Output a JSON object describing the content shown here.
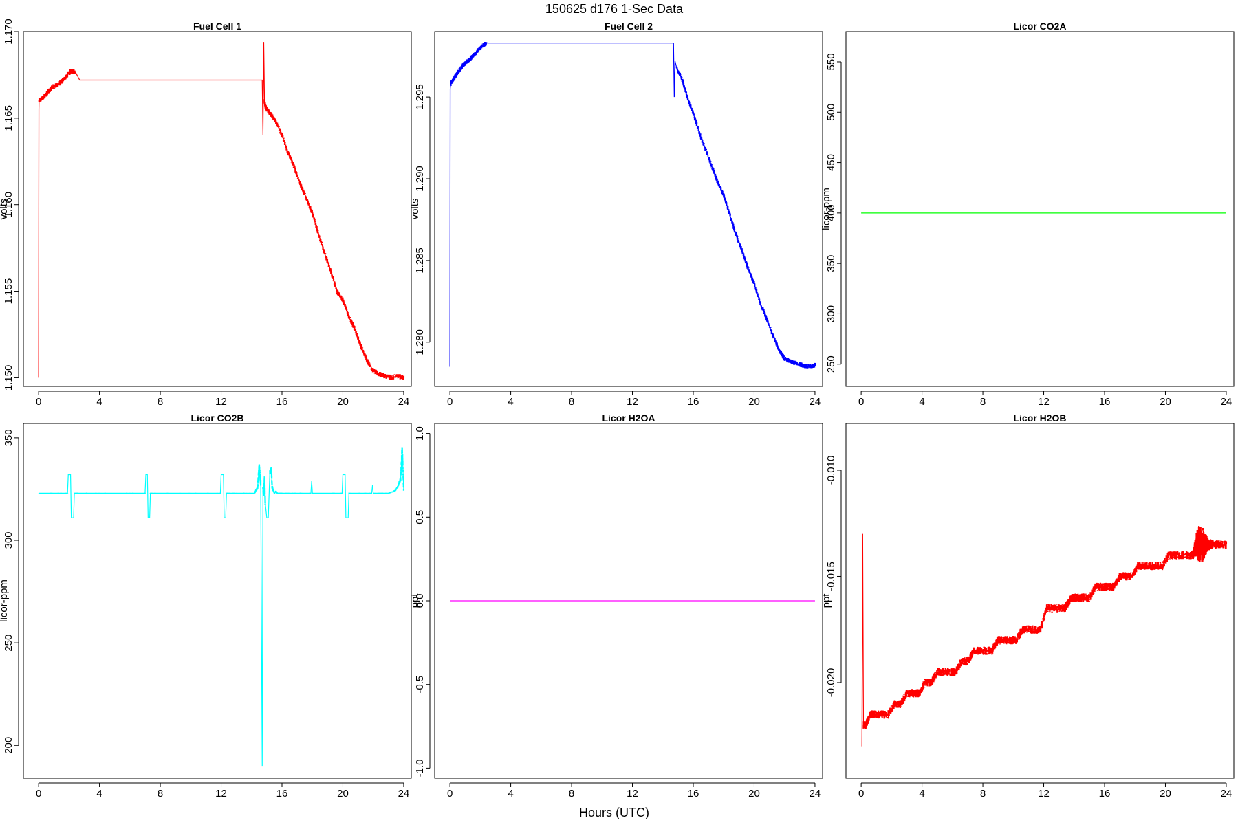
{
  "figure": {
    "title": "150625   d176   1-Sec Data",
    "xlabel": "Hours (UTC)"
  },
  "chart_data": [
    {
      "type": "line",
      "title": "Fuel Cell 1",
      "xlabel": "",
      "ylabel": "volts",
      "xlim": [
        -1,
        24.5
      ],
      "ylim": [
        1.1495,
        1.17
      ],
      "xticks": [
        "0",
        "4",
        "8",
        "12",
        "16",
        "20",
        "24"
      ],
      "yticks": [
        "1.150",
        "1.155",
        "1.160",
        "1.165",
        "1.170"
      ],
      "ytick_values": [
        1.15,
        1.155,
        1.16,
        1.165,
        1.17
      ],
      "grid": false,
      "series": [
        {
          "color": "#ff0000",
          "x": [
            0,
            0.02,
            0.03,
            0.3,
            0.6,
            0.9,
            1.2,
            1.5,
            1.8,
            2.1,
            2.4,
            2.7,
            14.7,
            14.75,
            14.8,
            14.85,
            14.9,
            15.0,
            15.3,
            15.6,
            16.0,
            16.4,
            16.8,
            17.2,
            17.6,
            18.0,
            18.4,
            18.8,
            19.2,
            19.6,
            20.0,
            20.4,
            20.8,
            21.2,
            21.6,
            22.0,
            22.4,
            22.8,
            23.2,
            23.6,
            24.0
          ],
          "y": [
            1.15,
            1.1655,
            1.166,
            1.1662,
            1.1665,
            1.1668,
            1.1669,
            1.1671,
            1.1674,
            1.1677,
            1.1677,
            1.1672,
            1.1672,
            1.164,
            1.1694,
            1.166,
            1.1657,
            1.1655,
            1.1652,
            1.1648,
            1.164,
            1.163,
            1.1622,
            1.1612,
            1.1604,
            1.1595,
            1.1583,
            1.1572,
            1.1562,
            1.155,
            1.1545,
            1.1535,
            1.1528,
            1.1518,
            1.151,
            1.1504,
            1.1502,
            1.1501,
            1.15,
            1.1501,
            1.15
          ],
          "noise": [
            0,
            0,
            0.0003,
            0.0003,
            0.0003,
            0.0003,
            0.0003,
            0.0003,
            0.0003,
            0.0003,
            0.0003,
            0,
            0,
            0,
            0,
            0.0003,
            0.0003,
            0.0003,
            0.0003,
            0.0003,
            0.0003,
            0.0003,
            0.0003,
            0.0003,
            0.0003,
            0.0003,
            0.0003,
            0.0003,
            0.0003,
            0.0003,
            0.0003,
            0.0003,
            0.0003,
            0.0003,
            0.0003,
            0.0003,
            0.0003,
            0.0003,
            0.0003,
            0.0003,
            0.0003
          ]
        }
      ]
    },
    {
      "type": "line",
      "title": "Fuel Cell 2",
      "xlabel": "",
      "ylabel": "volts",
      "xlim": [
        -1,
        24.5
      ],
      "ylim": [
        1.2773,
        1.299
      ],
      "xticks": [
        "0",
        "4",
        "8",
        "12",
        "16",
        "20",
        "24"
      ],
      "yticks": [
        "1.280",
        "1.285",
        "1.290",
        "1.295"
      ],
      "ytick_values": [
        1.28,
        1.285,
        1.29,
        1.295
      ],
      "grid": false,
      "series": [
        {
          "color": "#0000ff",
          "x": [
            0,
            0.02,
            0.05,
            0.3,
            0.6,
            0.9,
            1.2,
            1.5,
            1.8,
            2.1,
            2.4,
            2.7,
            14.7,
            14.75,
            14.8,
            14.9,
            15.3,
            15.6,
            16.0,
            16.4,
            16.8,
            17.2,
            17.6,
            18.0,
            18.4,
            18.8,
            19.2,
            19.6,
            20.0,
            20.4,
            20.8,
            21.2,
            21.6,
            22.0,
            22.4,
            22.8,
            23.2,
            23.6,
            24.0
          ],
          "y": [
            1.2785,
            1.2955,
            1.2958,
            1.2962,
            1.2966,
            1.297,
            1.2972,
            1.2975,
            1.2978,
            1.2981,
            1.2983,
            1.2983,
            1.2983,
            1.295,
            1.2972,
            1.2968,
            1.296,
            1.295,
            1.294,
            1.2928,
            1.2918,
            1.2908,
            1.2898,
            1.289,
            1.2878,
            1.2866,
            1.2856,
            1.2845,
            1.2836,
            1.2824,
            1.2815,
            1.2805,
            1.2796,
            1.279,
            1.2788,
            1.2787,
            1.2786,
            1.2785,
            1.2786
          ],
          "noise": [
            0,
            0,
            0.0003,
            0.0003,
            0.0003,
            0.0003,
            0.0003,
            0.0003,
            0.0003,
            0.0003,
            0.0003,
            0,
            0,
            0,
            0,
            0.0003,
            0.0003,
            0.0003,
            0.0003,
            0.0003,
            0.0003,
            0.0003,
            0.0003,
            0.0003,
            0.0003,
            0.0003,
            0.0003,
            0.0003,
            0.0003,
            0.0003,
            0.0003,
            0.0003,
            0.0003,
            0.0003,
            0.0003,
            0.0003,
            0.0003,
            0.0003,
            0.0003
          ]
        }
      ]
    },
    {
      "type": "line",
      "title": "Licor CO2A",
      "xlabel": "",
      "ylabel": "licor-ppm",
      "xlim": [
        -1,
        24.5
      ],
      "ylim": [
        228,
        580
      ],
      "xticks": [
        "0",
        "4",
        "8",
        "12",
        "16",
        "20",
        "24"
      ],
      "yticks": [
        "250",
        "300",
        "350",
        "400",
        "450",
        "500",
        "550"
      ],
      "ytick_values": [
        250,
        300,
        350,
        400,
        450,
        500,
        550
      ],
      "grid": false,
      "series": [
        {
          "color": "#00ff00",
          "x": [
            0,
            24
          ],
          "y": [
            400,
            400
          ],
          "noise": [
            0,
            0
          ]
        }
      ]
    },
    {
      "type": "line",
      "title": "Licor CO2B",
      "xlabel": "",
      "ylabel": "licor-ppm",
      "xlim": [
        -1,
        24.5
      ],
      "ylim": [
        184,
        357
      ],
      "xticks": [
        "0",
        "4",
        "8",
        "12",
        "16",
        "20",
        "24"
      ],
      "yticks": [
        "200",
        "250",
        "300",
        "350"
      ],
      "ytick_values": [
        200,
        250,
        300,
        350
      ],
      "grid": false,
      "series": [
        {
          "color": "#00ffff",
          "x": [
            0,
            1.9,
            1.95,
            2.1,
            2.15,
            2.3,
            2.35,
            2.5,
            2.55,
            7.0,
            7.05,
            7.15,
            7.2,
            7.3,
            7.35,
            7.45,
            11.95,
            12.0,
            12.15,
            12.2,
            12.3,
            12.35,
            12.45,
            14.2,
            14.4,
            14.5,
            14.6,
            14.7,
            14.75,
            14.8,
            14.85,
            14.9,
            15.0,
            15.1,
            15.2,
            15.3,
            15.35,
            15.5,
            15.6,
            15.7,
            15.8,
            16.0,
            17.9,
            17.95,
            18.0,
            19.95,
            20.0,
            20.15,
            20.2,
            20.35,
            20.4,
            21.9,
            21.95,
            22.0,
            23.0,
            23.4,
            23.6,
            23.8,
            23.9,
            24.0
          ],
          "y": [
            323,
            323,
            332,
            332,
            311,
            311,
            323,
            323,
            323,
            323,
            332,
            332,
            311,
            311,
            323,
            323,
            323,
            332,
            332,
            311,
            311,
            323,
            323,
            323,
            326,
            336,
            328,
            190,
            325,
            322,
            330,
            318,
            311,
            311,
            333,
            335,
            326,
            323,
            324,
            323,
            323,
            323,
            323,
            329,
            323,
            323,
            332,
            332,
            311,
            311,
            323,
            323,
            327,
            323,
            323,
            324,
            326,
            330,
            345,
            325
          ],
          "noise": [
            0.5,
            0.5,
            0,
            0,
            0,
            0,
            0.5,
            0.5,
            0.5,
            0.5,
            0,
            0,
            0,
            0,
            0.5,
            0.5,
            0.5,
            0,
            0,
            0,
            0,
            0.5,
            0.5,
            0.5,
            2,
            3,
            3,
            0,
            2,
            2,
            3,
            3,
            0,
            0,
            2,
            2,
            2,
            0.5,
            0.5,
            0.5,
            0.5,
            0.5,
            0.5,
            0,
            0.5,
            0.5,
            0,
            0,
            0,
            0,
            0.5,
            0.5,
            0,
            0.5,
            0.5,
            1,
            1,
            2,
            4,
            2
          ]
        }
      ]
    },
    {
      "type": "line",
      "title": "Licor H2OA",
      "xlabel": "",
      "ylabel": "ppt",
      "xlim": [
        -1,
        24.5
      ],
      "ylim": [
        -1.06,
        1.06
      ],
      "xticks": [
        "0",
        "4",
        "8",
        "12",
        "16",
        "20",
        "24"
      ],
      "yticks": [
        "-1.0",
        "-0.5",
        "0.0",
        "0.5",
        "1.0"
      ],
      "ytick_values": [
        -1.0,
        -0.5,
        0.0,
        0.5,
        1.0
      ],
      "grid": false,
      "series": [
        {
          "color": "#ff00ff",
          "x": [
            0,
            24
          ],
          "y": [
            0,
            0
          ],
          "noise": [
            0,
            0
          ]
        }
      ]
    },
    {
      "type": "line",
      "title": "Licor H2OB",
      "xlabel": "",
      "ylabel": "ppt",
      "xlim": [
        -1,
        24.5
      ],
      "ylim": [
        -0.0245,
        -0.0078
      ],
      "xticks": [
        "0",
        "4",
        "8",
        "12",
        "16",
        "20",
        "24"
      ],
      "yticks": [
        "-0.020",
        "-0.015",
        "-0.010"
      ],
      "ytick_values": [
        -0.02,
        -0.015,
        -0.01
      ],
      "grid": false,
      "series": [
        {
          "color": "#ff0000",
          "x": [
            0.05,
            0.1,
            0.15,
            0.3,
            0.6,
            1.0,
            1.4,
            1.8,
            2.2,
            2.6,
            3.0,
            3.4,
            3.8,
            4.2,
            4.6,
            5.0,
            5.4,
            5.8,
            6.2,
            6.6,
            7.0,
            7.4,
            7.8,
            8.2,
            8.6,
            9.0,
            9.4,
            9.8,
            10.2,
            10.6,
            11.0,
            11.4,
            11.8,
            12.2,
            12.6,
            13.0,
            13.4,
            13.8,
            14.2,
            14.6,
            15.0,
            15.4,
            15.8,
            16.2,
            16.6,
            17.0,
            17.4,
            17.8,
            18.2,
            18.6,
            19.0,
            19.4,
            19.8,
            20.2,
            20.6,
            21.0,
            21.4,
            21.8,
            22.0,
            22.2,
            22.4,
            22.6,
            22.8,
            23.2,
            23.6,
            24.0
          ],
          "y": [
            -0.023,
            -0.013,
            -0.022,
            -0.022,
            -0.0215,
            -0.0215,
            -0.0215,
            -0.0215,
            -0.021,
            -0.021,
            -0.0205,
            -0.0205,
            -0.0205,
            -0.02,
            -0.02,
            -0.0195,
            -0.0195,
            -0.0195,
            -0.0195,
            -0.019,
            -0.019,
            -0.0185,
            -0.0185,
            -0.0185,
            -0.0185,
            -0.018,
            -0.018,
            -0.018,
            -0.018,
            -0.0175,
            -0.0175,
            -0.0175,
            -0.0175,
            -0.0165,
            -0.0165,
            -0.0165,
            -0.0165,
            -0.016,
            -0.016,
            -0.016,
            -0.016,
            -0.0155,
            -0.0155,
            -0.0155,
            -0.0155,
            -0.015,
            -0.015,
            -0.015,
            -0.0145,
            -0.0145,
            -0.0145,
            -0.0145,
            -0.0145,
            -0.014,
            -0.014,
            -0.014,
            -0.014,
            -0.014,
            -0.0135,
            -0.0135,
            -0.0135,
            -0.0135,
            -0.0135,
            -0.0135,
            -0.0135,
            -0.0135
          ],
          "noise": [
            0,
            0,
            0.0004,
            0.0004,
            0.0004,
            0.0004,
            0.0004,
            0.0004,
            0.0004,
            0.0004,
            0.0004,
            0.0004,
            0.0004,
            0.0004,
            0.0004,
            0.0004,
            0.0004,
            0.0004,
            0.0004,
            0.0004,
            0.0004,
            0.0004,
            0.0004,
            0.0004,
            0.0004,
            0.0004,
            0.0004,
            0.0004,
            0.0004,
            0.0004,
            0.0004,
            0.0004,
            0.0004,
            0.0004,
            0.0004,
            0.0004,
            0.0004,
            0.0004,
            0.0004,
            0.0004,
            0.0004,
            0.0004,
            0.0004,
            0.0004,
            0.0004,
            0.0004,
            0.0004,
            0.0004,
            0.0004,
            0.0004,
            0.0004,
            0.0004,
            0.0004,
            0.0004,
            0.0004,
            0.0004,
            0.0004,
            0.0004,
            0.0012,
            0.0018,
            0.0018,
            0.0012,
            0.0006,
            0.0004,
            0.0004,
            0.0004
          ]
        }
      ]
    }
  ]
}
